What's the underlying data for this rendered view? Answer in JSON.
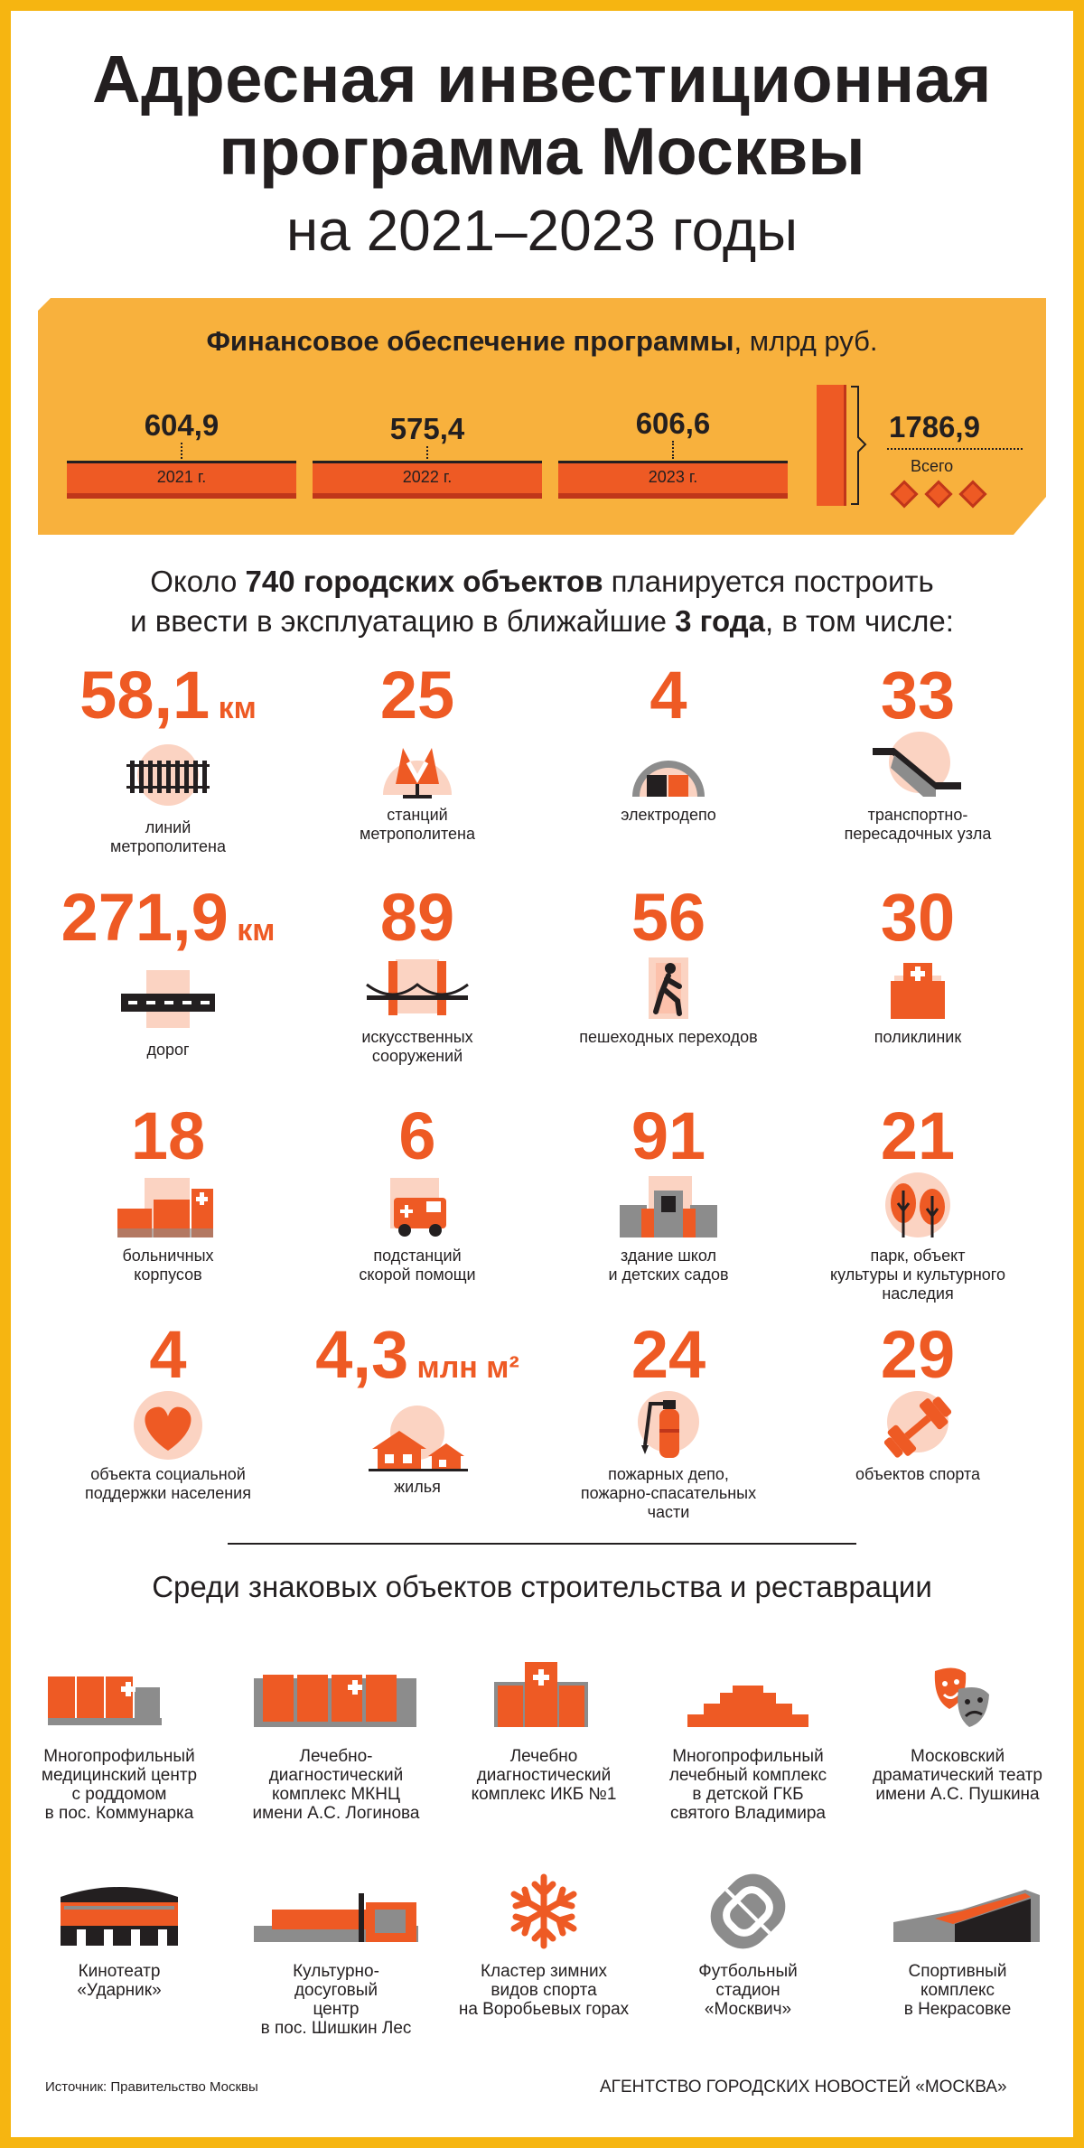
{
  "title": {
    "line1": "Адресная инвестиционная",
    "line2": "программа Москвы",
    "line3": "на 2021–2023 годы"
  },
  "finance": {
    "heading_bold": "Финансовое обеспечение программы",
    "heading_rest": ", млрд руб.",
    "years": [
      {
        "label": "2021 г.",
        "value": "604,9"
      },
      {
        "label": "2022 г.",
        "value": "575,4"
      },
      {
        "label": "2023 г.",
        "value": "606,6"
      }
    ],
    "total_value": "1786,9",
    "total_label": "Всего"
  },
  "intro": {
    "t1": "Около ",
    "b1": "740 городских объектов",
    "t2": " планируется построить",
    "t3": "и ввести в эксплуатацию в ближайшие ",
    "b2": "3 года",
    "t4": ", в том числе:"
  },
  "stats": [
    {
      "num": "58,1",
      "unit": "км",
      "label": "линий\nметрополитена",
      "icon": "railway-track-icon"
    },
    {
      "num": "25",
      "unit": "",
      "label": "станций\nметрополитена",
      "icon": "metro-logo-icon"
    },
    {
      "num": "4",
      "unit": "",
      "label": "электродепо",
      "icon": "depot-hangar-icon"
    },
    {
      "num": "33",
      "unit": "",
      "label": "транспортно-\nпересадочных узла",
      "icon": "escalator-icon"
    },
    {
      "num": "271,9",
      "unit": "км",
      "label": "дорог",
      "icon": "road-icon"
    },
    {
      "num": "89",
      "unit": "",
      "label": "искусственных\nсооружений",
      "icon": "bridge-icon"
    },
    {
      "num": "56",
      "unit": "",
      "label": "пешеходных переходов",
      "icon": "pedestrian-icon"
    },
    {
      "num": "30",
      "unit": "",
      "label": "поликлиник",
      "icon": "clinic-icon"
    },
    {
      "num": "18",
      "unit": "",
      "label": "больничных\nкорпусов",
      "icon": "hospital-icon"
    },
    {
      "num": "6",
      "unit": "",
      "label": "подстанций\nскорой помощи",
      "icon": "ambulance-icon"
    },
    {
      "num": "91",
      "unit": "",
      "label": "здание школ\nи детских садов",
      "icon": "school-icon"
    },
    {
      "num": "21",
      "unit": "",
      "label": "парк, объект\nкультуры и культурного\nнаследия",
      "icon": "trees-icon"
    },
    {
      "num": "4",
      "unit": "",
      "label": "объекта социальной\nподдержки населения",
      "icon": "heart-icon"
    },
    {
      "num": "4,3",
      "unit": "млн м²",
      "label": "жилья",
      "icon": "houses-icon"
    },
    {
      "num": "24",
      "unit": "",
      "label": "пожарных депо,\nпожарно-спасательных\nчасти",
      "icon": "fire-extinguisher-icon"
    },
    {
      "num": "29",
      "unit": "",
      "label": "объектов спорта",
      "icon": "dumbbell-icon"
    }
  ],
  "landmarks_title": "Среди знаковых объектов строительства и реставрации",
  "landmarks": [
    {
      "label": "Многопрофильный\nмедицинский центр\nс роддомом\nв пос. Коммунарка",
      "icon": "medical-center-icon"
    },
    {
      "label": "Лечебно-\nдиагностический\nкомплекс МКНЦ\nимени А.С. Логинова",
      "icon": "diagnostic-complex-icon"
    },
    {
      "label": "Лечебно\nдиагностический\nкомплекс ИКБ №1",
      "icon": "clinic-building-icon"
    },
    {
      "label": "Многопрофильный\nлечебный комплекс\nв детской ГКБ\nсвятого Владимира",
      "icon": "stepped-building-icon"
    },
    {
      "label": "Московский\nдраматический театр\nимени А.С. Пушкина",
      "icon": "theater-masks-icon"
    },
    {
      "label": "Кинотеатр\n«Ударник»",
      "icon": "cinema-icon"
    },
    {
      "label": "Культурно-\nдосуговый\nцентр\nв пос. Шишкин Лес",
      "icon": "cultural-center-icon"
    },
    {
      "label": "Кластер зимних\nвидов спорта\nна Воробьевых горах",
      "icon": "snowflake-icon"
    },
    {
      "label": "Футбольный\nстадион\n«Москвич»",
      "icon": "stadium-icon"
    },
    {
      "label": "Спортивный\nкомплекс\nв Некрасовке",
      "icon": "sports-complex-icon"
    }
  ],
  "footer": {
    "source": "Источник: Правительство Москвы",
    "agency": "АГЕНТСТВО ГОРОДСКИХ НОВОСТЕЙ «МОСКВА»"
  },
  "colors": {
    "accent": "#ee5a24",
    "accent_dark": "#c0361a",
    "banner": "#f8b13d",
    "border": "#f6b511",
    "halo": "#fbd3c2",
    "text": "#231f20",
    "grey": "#8c8c8c"
  }
}
